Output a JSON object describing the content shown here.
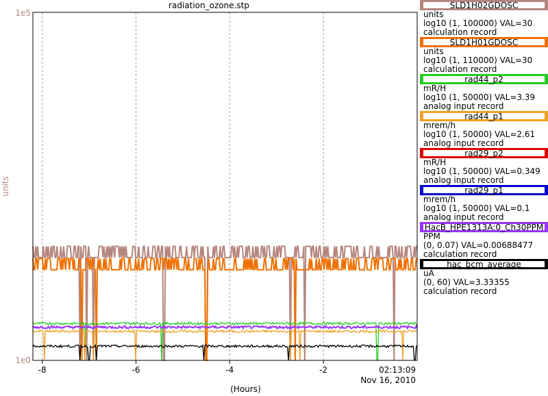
{
  "title": "radiation_ozone.stp",
  "y_axis": {
    "label": "units",
    "top_tick": "1e5",
    "bottom_tick": "1e0",
    "color": "#b5867e"
  },
  "x_axis": {
    "label": "(Hours)",
    "ticks": [
      "-8",
      "-6",
      "-4",
      "-2"
    ],
    "end_time": "02:13:09",
    "end_date": "Nov 16, 2010"
  },
  "legend": [
    {
      "name": "SLD1H02GDOSC",
      "units": "units",
      "range": "log10 (1, 100000) VAL=30",
      "type": "calculation record",
      "color": "#b5867e"
    },
    {
      "name": "SLD1H01GDOSC",
      "units": "units",
      "range": "log10 (1, 110000) VAL=30",
      "type": "calculation record",
      "color": "#f07000"
    },
    {
      "name": "rad44_p2",
      "units": "mR/H",
      "range": "log10 (1, 50000) VAL=3.39",
      "type": "analog input record",
      "color": "#22cc22"
    },
    {
      "name": "rad44_p1",
      "units": "mrem/h",
      "range": "log10 (1, 50000) VAL=2.61",
      "type": "analog input record",
      "color": "#f0a020"
    },
    {
      "name": "rad29_p2",
      "units": "mR/H",
      "range": "log10 (1, 50000) VAL=0.349",
      "type": "analog input record",
      "color": "#dd0000"
    },
    {
      "name": "rad29_p1",
      "units": "mrem/h",
      "range": "log10 (1, 50000) VAL=0.1",
      "type": "analog input record",
      "color": "#0000cc"
    },
    {
      "name": "HacB_HPE1313A:0_Ch30PPM",
      "units": "PPM",
      "range": "(0, 0.07) VAL=0.00688477",
      "type": "calculation record",
      "color": "#9933ff"
    },
    {
      "name": "hac_bcm_average",
      "units": "uA",
      "range": "(0, 60) VAL=3.33355",
      "type": "calculation record",
      "color": "#000000"
    }
  ],
  "chart_data": {
    "type": "line",
    "title": "radiation_ozone.stp",
    "xlabel": "(Hours)",
    "ylabel": "units",
    "xlim": [
      -8.2,
      0
    ],
    "ylim": [
      1,
      100000
    ],
    "yscale": "log",
    "grid": true,
    "legend_placement": "right",
    "series": [
      {
        "name": "SLD1H02GDOSC",
        "typical": 30,
        "dropouts": [
          -7.2,
          -7.05,
          -6.9,
          -5.4,
          -4.5,
          -2.7,
          -2.4,
          -0.5
        ]
      },
      {
        "name": "SLD1H01GDOSC",
        "typical": 20,
        "dropouts": [
          -7.15,
          -6.85,
          -4.5,
          -2.6
        ]
      },
      {
        "name": "rad44_p2",
        "typical": 3.39
      },
      {
        "name": "rad44_p1",
        "typical": 2.61
      },
      {
        "name": "HacB_HPE1313A:0_Ch30PPM",
        "typical": 3.0
      },
      {
        "name": "hac_bcm_average",
        "typical": 1.6
      }
    ]
  }
}
